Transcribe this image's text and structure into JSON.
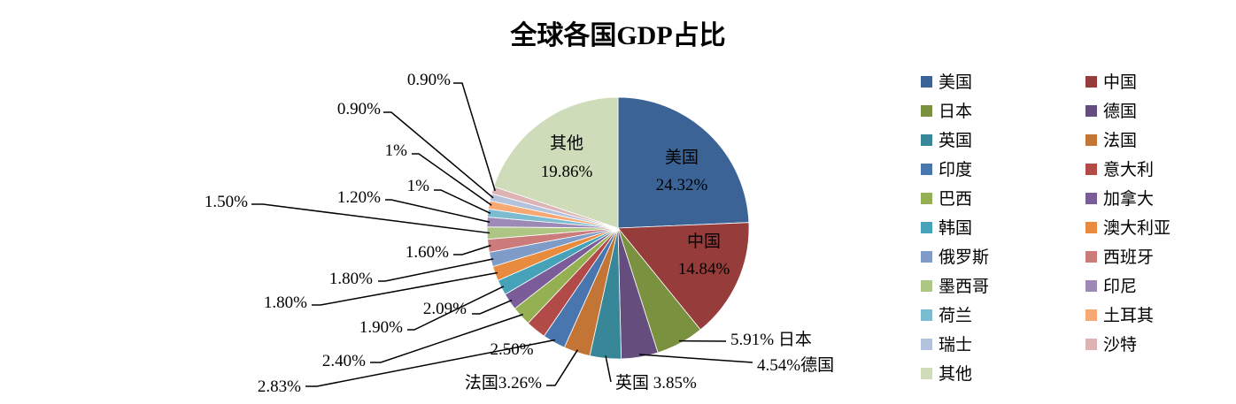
{
  "chart_data": {
    "type": "pie",
    "title": "全球各国GDP占比",
    "legend_position": "right",
    "start_angle_deg": 0,
    "direction": "clockwise",
    "slices": [
      {
        "name": "美国",
        "value": 24.32,
        "label": "24.32%",
        "color": "#3C6395"
      },
      {
        "name": "中国",
        "value": 14.84,
        "label": "14.84%",
        "color": "#963C3B"
      },
      {
        "name": "日本",
        "value": 5.91,
        "label": "5.91% 日本",
        "color": "#7A9140"
      },
      {
        "name": "德国",
        "value": 4.54,
        "label": "4.54%德国",
        "color": "#654D7E"
      },
      {
        "name": "英国",
        "value": 3.85,
        "label": "英国 3.85%",
        "color": "#378799"
      },
      {
        "name": "法国",
        "value": 3.26,
        "label": "法国3.26%",
        "color": "#C27534"
      },
      {
        "name": "印度",
        "value": 2.83,
        "label": "2.83%",
        "color": "#4A76B0"
      },
      {
        "name": "意大利",
        "value": 2.5,
        "label": "2.50%",
        "color": "#B24A48"
      },
      {
        "name": "巴西",
        "value": 2.4,
        "label": "2.40%",
        "color": "#94B052"
      },
      {
        "name": "加拿大",
        "value": 2.09,
        "label": "2.09%",
        "color": "#7A5D98"
      },
      {
        "name": "韩国",
        "value": 1.9,
        "label": "1.90%",
        "color": "#46A2B8"
      },
      {
        "name": "澳大利亚",
        "value": 1.8,
        "label": "1.80%",
        "color": "#E88B3E"
      },
      {
        "name": "俄罗斯",
        "value": 1.8,
        "label": "1.80%",
        "color": "#7F9CC8"
      },
      {
        "name": "西班牙",
        "value": 1.6,
        "label": "1.60%",
        "color": "#CB7B7A"
      },
      {
        "name": "墨西哥",
        "value": 1.5,
        "label": "1.50%",
        "color": "#AEC683"
      },
      {
        "name": "印尼",
        "value": 1.2,
        "label": "1.20%",
        "color": "#9D89B5"
      },
      {
        "name": "荷兰",
        "value": 1.0,
        "label": "1%",
        "color": "#7BBCD0"
      },
      {
        "name": "土耳其",
        "value": 1.0,
        "label": "1%",
        "color": "#F7A873"
      },
      {
        "name": "瑞士",
        "value": 0.9,
        "label": "0.90%",
        "color": "#B4C3DD"
      },
      {
        "name": "沙特",
        "value": 0.9,
        "label": "0.90%",
        "color": "#DDB4B3"
      },
      {
        "name": "其他",
        "value": 19.86,
        "label": "19.86%",
        "color": "#CFDCB9"
      }
    ]
  }
}
